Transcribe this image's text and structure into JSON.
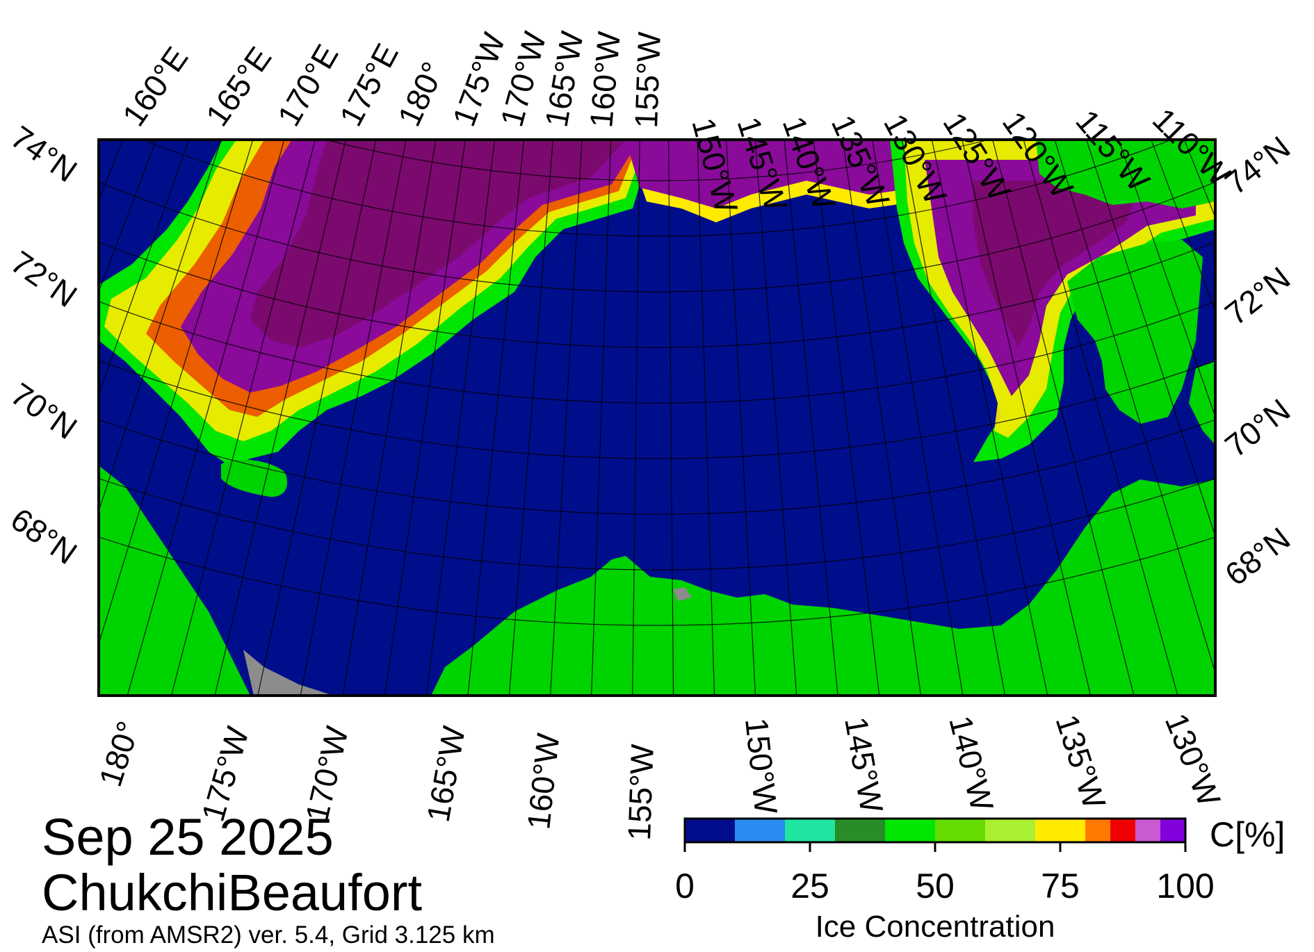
{
  "map": {
    "date_label": "Sep 25 2025",
    "region_label": "ChukchiBeaufort",
    "source_label": "ASI (from AMSR2) ver. 5.4,  Grid 3.125 km",
    "top_longitude_labels": [
      "160°E",
      "165°E",
      "170°E",
      "175°E",
      "180°",
      "175°W",
      "170°W",
      "165°W",
      "160°W",
      "155°W",
      "150°W",
      "145°W",
      "140°W",
      "135°W",
      "130°W",
      "125°W",
      "120°W",
      "115°W",
      "110°W"
    ],
    "bottom_longitude_labels": [
      "180°",
      "175°W",
      "170°W",
      "165°W",
      "160°W",
      "155°W",
      "150°W",
      "145°W",
      "140°W",
      "135°W",
      "130°W"
    ],
    "left_latitude_labels": [
      "74°N",
      "72°N",
      "70°N",
      "68°N"
    ],
    "right_latitude_labels": [
      "74°N",
      "72°N",
      "70°N",
      "68°N"
    ],
    "colors": {
      "ocean": "#000e8c",
      "land": "#00d400",
      "missing": "#8c8c8c",
      "ice_purple": "#8a0a9a",
      "ice_dark": "#7b0a6e"
    }
  },
  "colorbar": {
    "title": "Ice Concentration",
    "unit": "C[%]",
    "tick_labels": [
      "0",
      "25",
      "50",
      "75",
      "100"
    ],
    "tick_values": [
      0,
      25,
      50,
      75,
      100
    ],
    "range": [
      0,
      100
    ],
    "bins": [
      {
        "from": 0,
        "to": 10,
        "color": "#000e8c"
      },
      {
        "from": 10,
        "to": 20,
        "color": "#2a8cf0"
      },
      {
        "from": 20,
        "to": 30,
        "color": "#1ee6a0"
      },
      {
        "from": 30,
        "to": 40,
        "color": "#288c28"
      },
      {
        "from": 40,
        "to": 50,
        "color": "#00e600"
      },
      {
        "from": 50,
        "to": 60,
        "color": "#64dc00"
      },
      {
        "from": 60,
        "to": 70,
        "color": "#aaf032"
      },
      {
        "from": 70,
        "to": 80,
        "color": "#ffeb00"
      },
      {
        "from": 80,
        "to": 85,
        "color": "#ff7800"
      },
      {
        "from": 85,
        "to": 90,
        "color": "#f00000"
      },
      {
        "from": 90,
        "to": 95,
        "color": "#c85ad2"
      },
      {
        "from": 95,
        "to": 100,
        "color": "#8200dc"
      }
    ]
  }
}
